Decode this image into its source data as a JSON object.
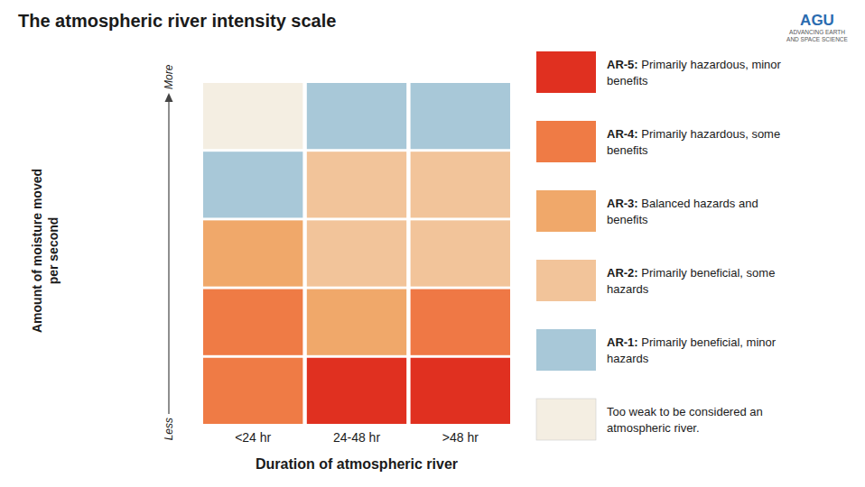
{
  "chart_data": {
    "type": "heatmap",
    "title": "The atmospheric river intensity scale",
    "xlabel": "Duration of atmospheric river",
    "ylabel": "Amount of moisture moved\nper second",
    "categories": [
      "<24 hr",
      "24-48 hr",
      ">48 hr"
    ],
    "cells": [
      [
        "#F4EEE2",
        "#A8C8D8",
        "#A8C8D8"
      ],
      [
        "#A8C8D8",
        "#F2C49A",
        "#F2C49A"
      ],
      [
        "#F0A86A",
        "#F2C49A",
        "#F2C49A"
      ],
      [
        "#EF7B45",
        "#F0A86A",
        "#EF7845"
      ],
      [
        "#EF7B45",
        "#E03020",
        "#E03020"
      ]
    ],
    "series": [
      {
        "name": "AR-5: Primarily hazardous, minor benefits",
        "color": "#E03020"
      },
      {
        "name": "AR-4: Primarily hazardous, some benefits",
        "color": "#EF7B45"
      },
      {
        "name": "AR-3: Balanced hazards and benefits",
        "color": "#F0A86A"
      },
      {
        "name": "AR-2: Primarily beneficial, some hazards",
        "color": "#F2C49A"
      },
      {
        "name": "AR-1: Primarily beneficial, minor hazards",
        "color": "#A8C8D8"
      },
      {
        "name": "Too weak to be considered an atmospheric river.",
        "color": "#F4EEE2"
      }
    ],
    "annotations": [
      "Less",
      "More",
      "AGU",
      "ADVANCING EARTH\nAND SPACE SCIENCE"
    ],
    "legend": "right",
    "grid": false
  }
}
